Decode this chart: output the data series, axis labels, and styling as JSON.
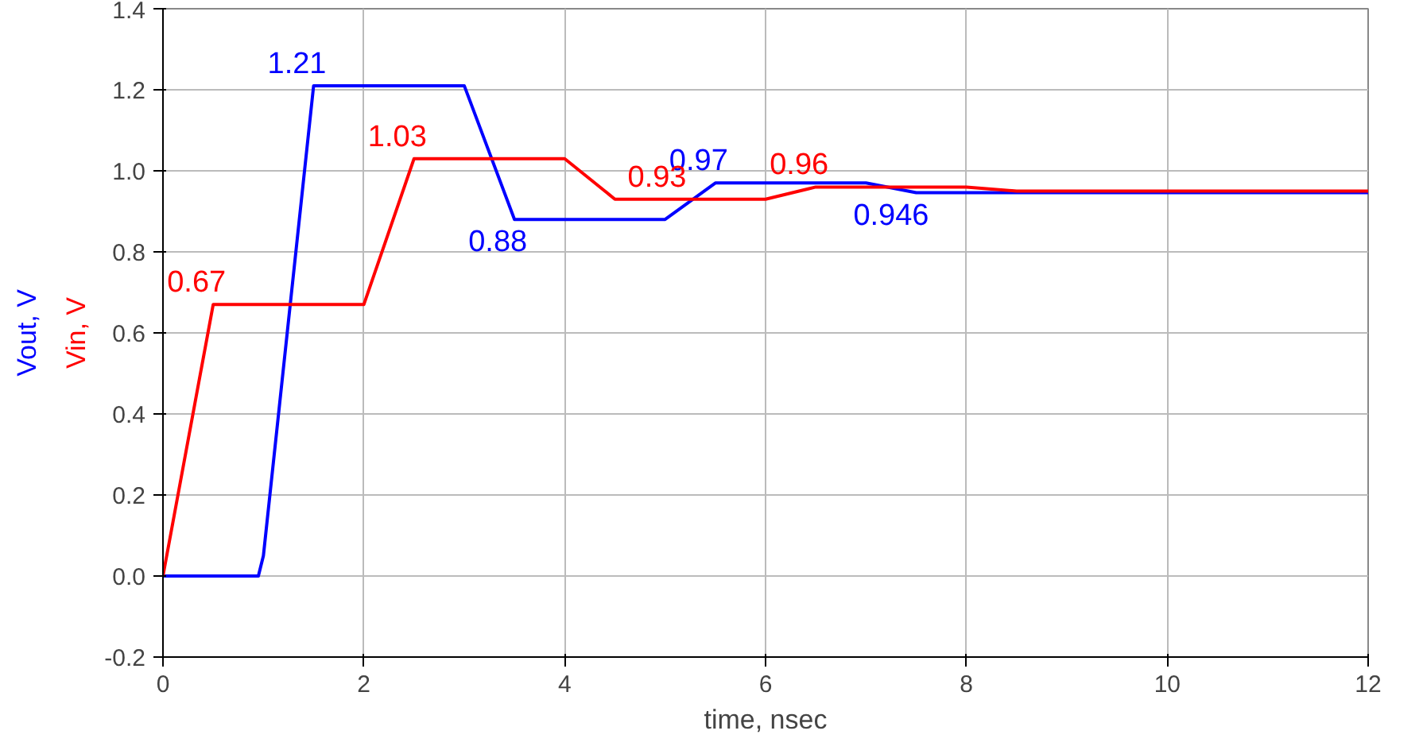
{
  "chart_data": {
    "type": "line",
    "xlabel": "time, nsec",
    "xlim": [
      0,
      12
    ],
    "ylim": [
      -0.2,
      1.4
    ],
    "xticks": [
      0,
      2,
      4,
      6,
      8,
      10,
      12
    ],
    "yticks": [
      {
        "value": -0.2,
        "label": "-0.2"
      },
      {
        "value": 0,
        "label": "0.0"
      },
      {
        "value": 0.2,
        "label": "0.2"
      },
      {
        "value": 0.4,
        "label": "0.4"
      },
      {
        "value": 0.6,
        "label": "0.6"
      },
      {
        "value": 0.8,
        "label": "0.8"
      },
      {
        "value": 1.0,
        "label": "1.0"
      },
      {
        "value": 1.2,
        "label": "1.2"
      },
      {
        "value": 1.4,
        "label": "1.4"
      }
    ],
    "grid": true,
    "legend": false,
    "marker": "none",
    "line_style": "solid",
    "series": [
      {
        "name": "Vout, V",
        "color": "#0000ff",
        "x": [
          0,
          0.95,
          1.0,
          1.5,
          3.0,
          3.5,
          5.0,
          5.5,
          7.0,
          7.5,
          12
        ],
        "values": [
          0,
          0,
          0.05,
          1.21,
          1.21,
          0.88,
          0.88,
          0.97,
          0.97,
          0.946,
          0.946
        ],
        "value_labels": [
          null,
          null,
          null,
          "1.21",
          null,
          "0.88",
          null,
          "0.97",
          null,
          "0.946",
          null
        ]
      },
      {
        "name": "Vin, V",
        "color": "#ff0000",
        "x": [
          0,
          0.5,
          2.0,
          2.5,
          4.0,
          4.5,
          6.0,
          6.5,
          8.0,
          8.5,
          12
        ],
        "values": [
          0,
          0.67,
          0.67,
          1.03,
          1.03,
          0.93,
          0.93,
          0.96,
          0.96,
          0.95,
          0.95
        ],
        "value_labels": [
          null,
          "0.67",
          null,
          "1.03",
          null,
          "0.93",
          null,
          "0.96",
          null,
          null,
          null
        ]
      }
    ]
  }
}
